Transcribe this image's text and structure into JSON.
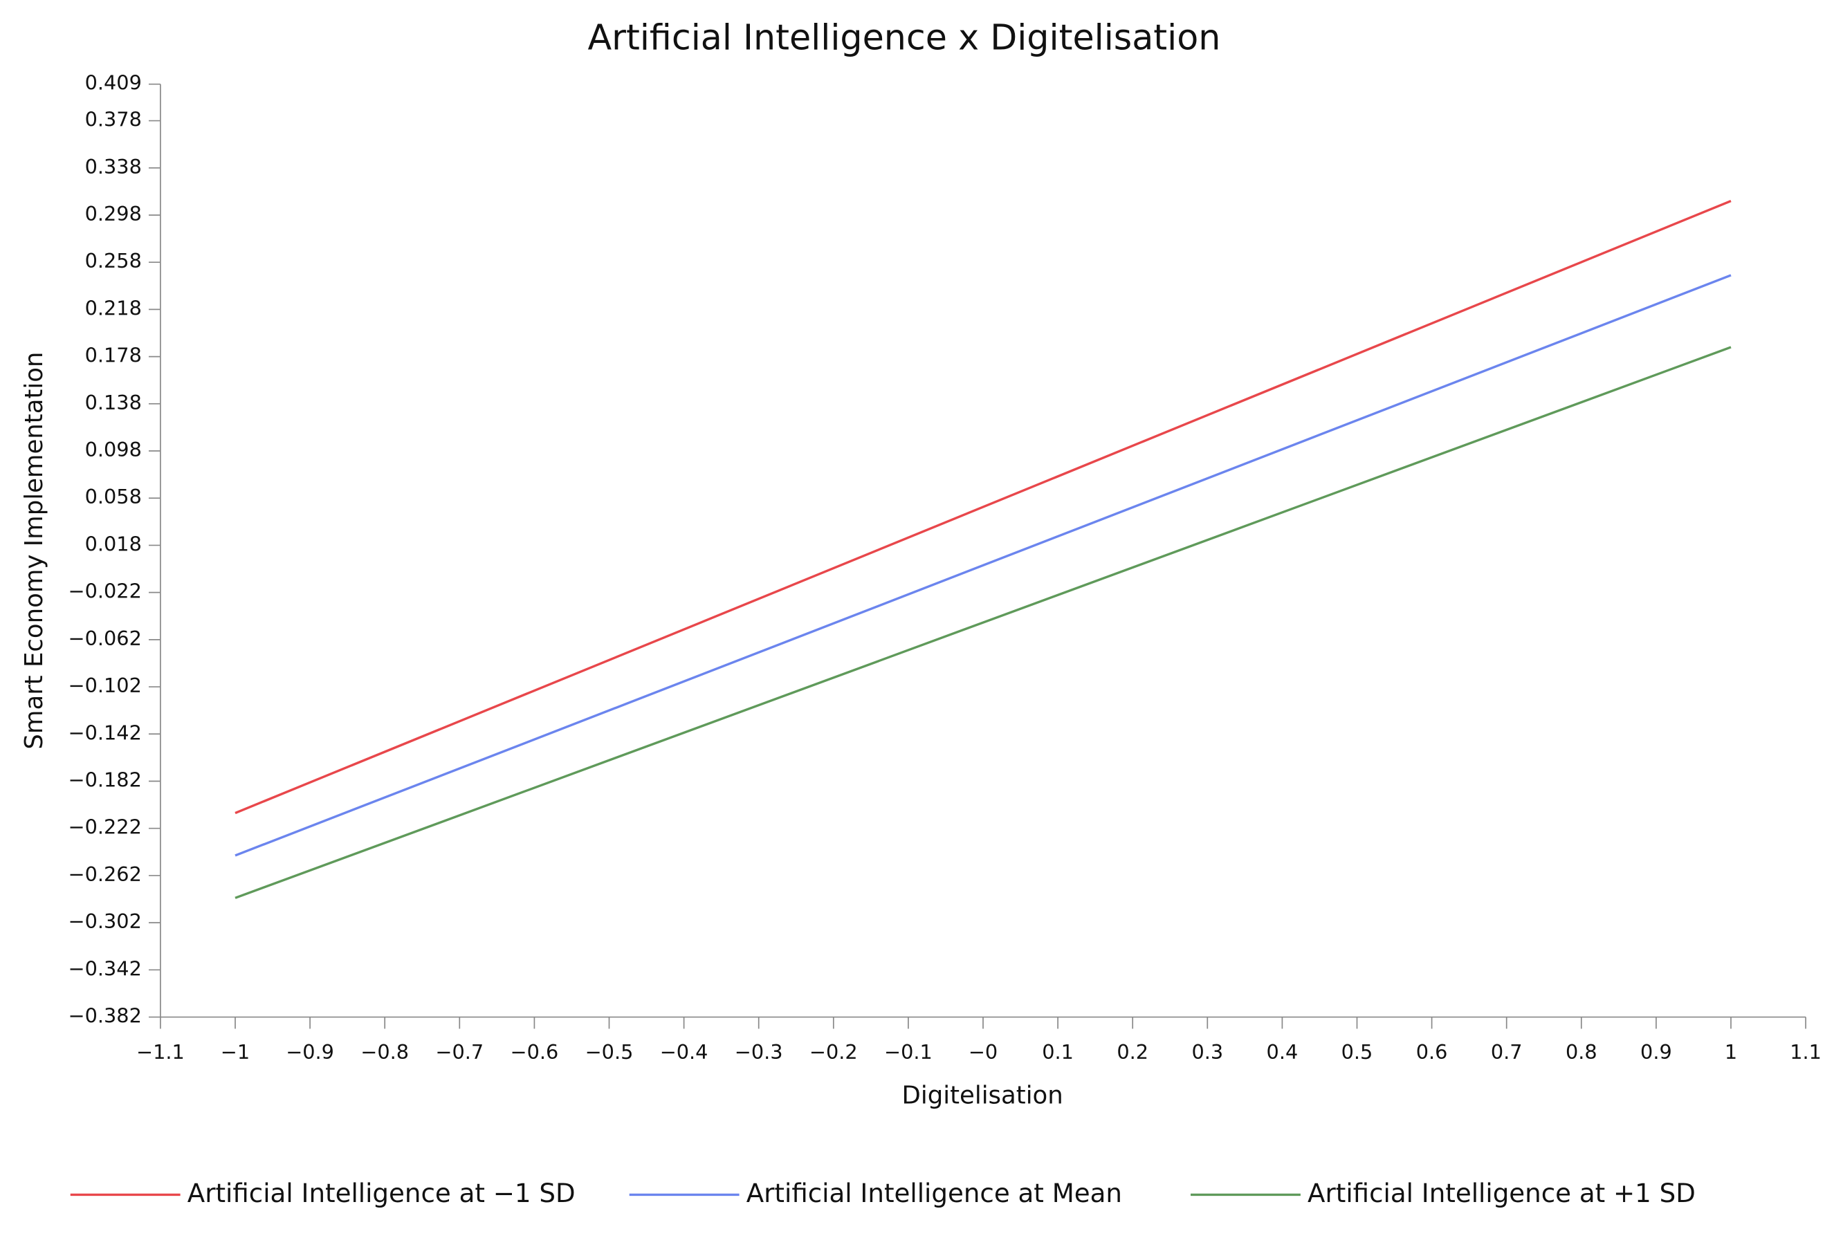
{
  "chart_data": {
    "type": "line",
    "title": "Artificial Intelligence x Digitelisation",
    "x_label": "Digitelisation",
    "y_label": "Smart Economy Implementation",
    "x": [
      -1,
      1
    ],
    "series": [
      {
        "name": "Artificial Intelligence at −1 SD",
        "color": "#e8474b",
        "values": [
          -0.209,
          0.31
        ]
      },
      {
        "name": "Artificial Intelligence at Mean",
        "color": "#6b85ee",
        "values": [
          -0.245,
          0.247
        ]
      },
      {
        "name": "Artificial Intelligence at +1 SD",
        "color": "#5f9a5a",
        "values": [
          -0.281,
          0.186
        ]
      }
    ],
    "xlim": [
      -1.1,
      1.1
    ],
    "xticks": [
      {
        "value": -1.1,
        "label": "−1.1"
      },
      {
        "value": -1,
        "label": "−1"
      },
      {
        "value": -0.9,
        "label": "−0.9"
      },
      {
        "value": -0.8,
        "label": "−0.8"
      },
      {
        "value": -0.7,
        "label": "−0.7"
      },
      {
        "value": -0.6,
        "label": "−0.6"
      },
      {
        "value": -0.5,
        "label": "−0.5"
      },
      {
        "value": -0.4,
        "label": "−0.4"
      },
      {
        "value": -0.3,
        "label": "−0.3"
      },
      {
        "value": -0.2,
        "label": "−0.2"
      },
      {
        "value": -0.1,
        "label": "−0.1"
      },
      {
        "value": 0,
        "label": "−0"
      },
      0.1,
      0.2,
      0.3,
      0.4,
      0.5,
      0.6,
      0.7,
      0.8,
      0.9,
      1,
      1.1
    ],
    "ylim": [
      -0.382,
      0.409
    ],
    "yticks": [
      0.409,
      0.378,
      0.338,
      0.298,
      0.258,
      0.218,
      0.178,
      0.138,
      0.098,
      0.058,
      0.018,
      {
        "value": -0.022,
        "label": "−0.022"
      },
      {
        "value": -0.062,
        "label": "−0.062"
      },
      {
        "value": -0.102,
        "label": "−0.102"
      },
      {
        "value": -0.142,
        "label": "−0.142"
      },
      {
        "value": -0.182,
        "label": "−0.182"
      },
      {
        "value": -0.222,
        "label": "−0.222"
      },
      {
        "value": -0.262,
        "label": "−0.262"
      },
      {
        "value": -0.302,
        "label": "−0.302"
      },
      {
        "value": -0.342,
        "label": "−0.342"
      },
      {
        "value": -0.382,
        "label": "−0.382"
      }
    ],
    "grid": false,
    "legend": "bottom"
  }
}
